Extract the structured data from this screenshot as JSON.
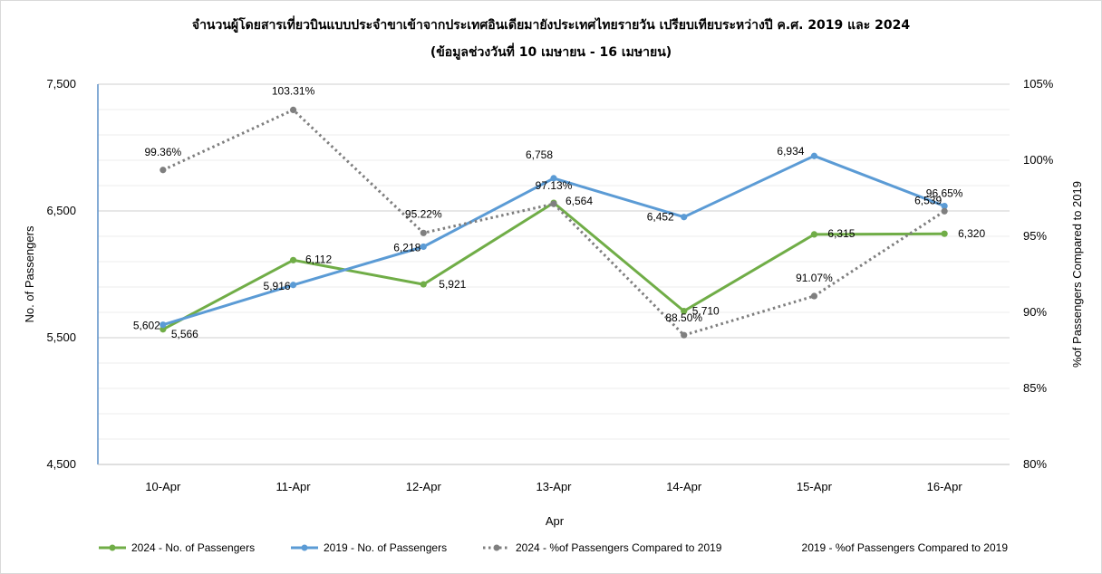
{
  "chart_data": {
    "type": "line",
    "title": "จำนวนผู้โดยสารเที่ยวบินแบบประจำขาเข้าจากประเทศอินเดียมายังประเทศไทยรายวัน  เปรียบเทียบระหว่างปี  ค.ศ. 2019 และ 2024",
    "subtitle": "(ข้อมูลช่วงวันที่ 10 เมษายน - 16 เมษายน)",
    "xlabel": "Apr",
    "ylabel": "No. of Passengers",
    "y2label": "%of Passengers Compared to 2019",
    "categories": [
      "10-Apr",
      "11-Apr",
      "12-Apr",
      "13-Apr",
      "14-Apr",
      "15-Apr",
      "16-Apr"
    ],
    "ylim": [
      4500,
      7500
    ],
    "y_ticks": [
      "4,500",
      "5,500",
      "6,500",
      "7,500"
    ],
    "y2lim": [
      80,
      105
    ],
    "y2_ticks": [
      "80%",
      "85%",
      "90%",
      "95%",
      "100%",
      "105%"
    ],
    "series": [
      {
        "name": "2024 - No. of Passengers",
        "axis": "left",
        "color": "#70ad47",
        "style": "solid",
        "values": [
          5566,
          6112,
          5921,
          6564,
          5710,
          6315,
          6320
        ],
        "labels": [
          "5,566",
          "6,112",
          "5,921",
          "6,564",
          "5,710",
          "6,315",
          "6,320"
        ]
      },
      {
        "name": "2019 - No. of Passengers",
        "axis": "left",
        "color": "#5b9bd5",
        "style": "solid",
        "values": [
          5602,
          5916,
          6218,
          6758,
          6452,
          6934,
          6539
        ],
        "labels": [
          "5,602",
          "5,916",
          "6,218",
          "6,758",
          "6,452",
          "6,934",
          "6,539"
        ]
      },
      {
        "name": "2024 - %of Passengers Compared to 2019",
        "axis": "right",
        "color": "#7f7f7f",
        "style": "dotted",
        "values": [
          99.36,
          103.31,
          95.22,
          97.13,
          88.5,
          91.07,
          96.65
        ],
        "labels": [
          "99.36%",
          "103.31%",
          "95.22%",
          "97.13%",
          "88.50%",
          "91.07%",
          "96.65%"
        ]
      }
    ],
    "legend": {
      "position": "bottom",
      "items": [
        "2024 - No. of Passengers",
        "2019 - No. of Passengers",
        "2024 - %of Passengers Compared to 2019",
        "2019 - %of Passengers Compared to 2019"
      ]
    },
    "grid": true
  }
}
